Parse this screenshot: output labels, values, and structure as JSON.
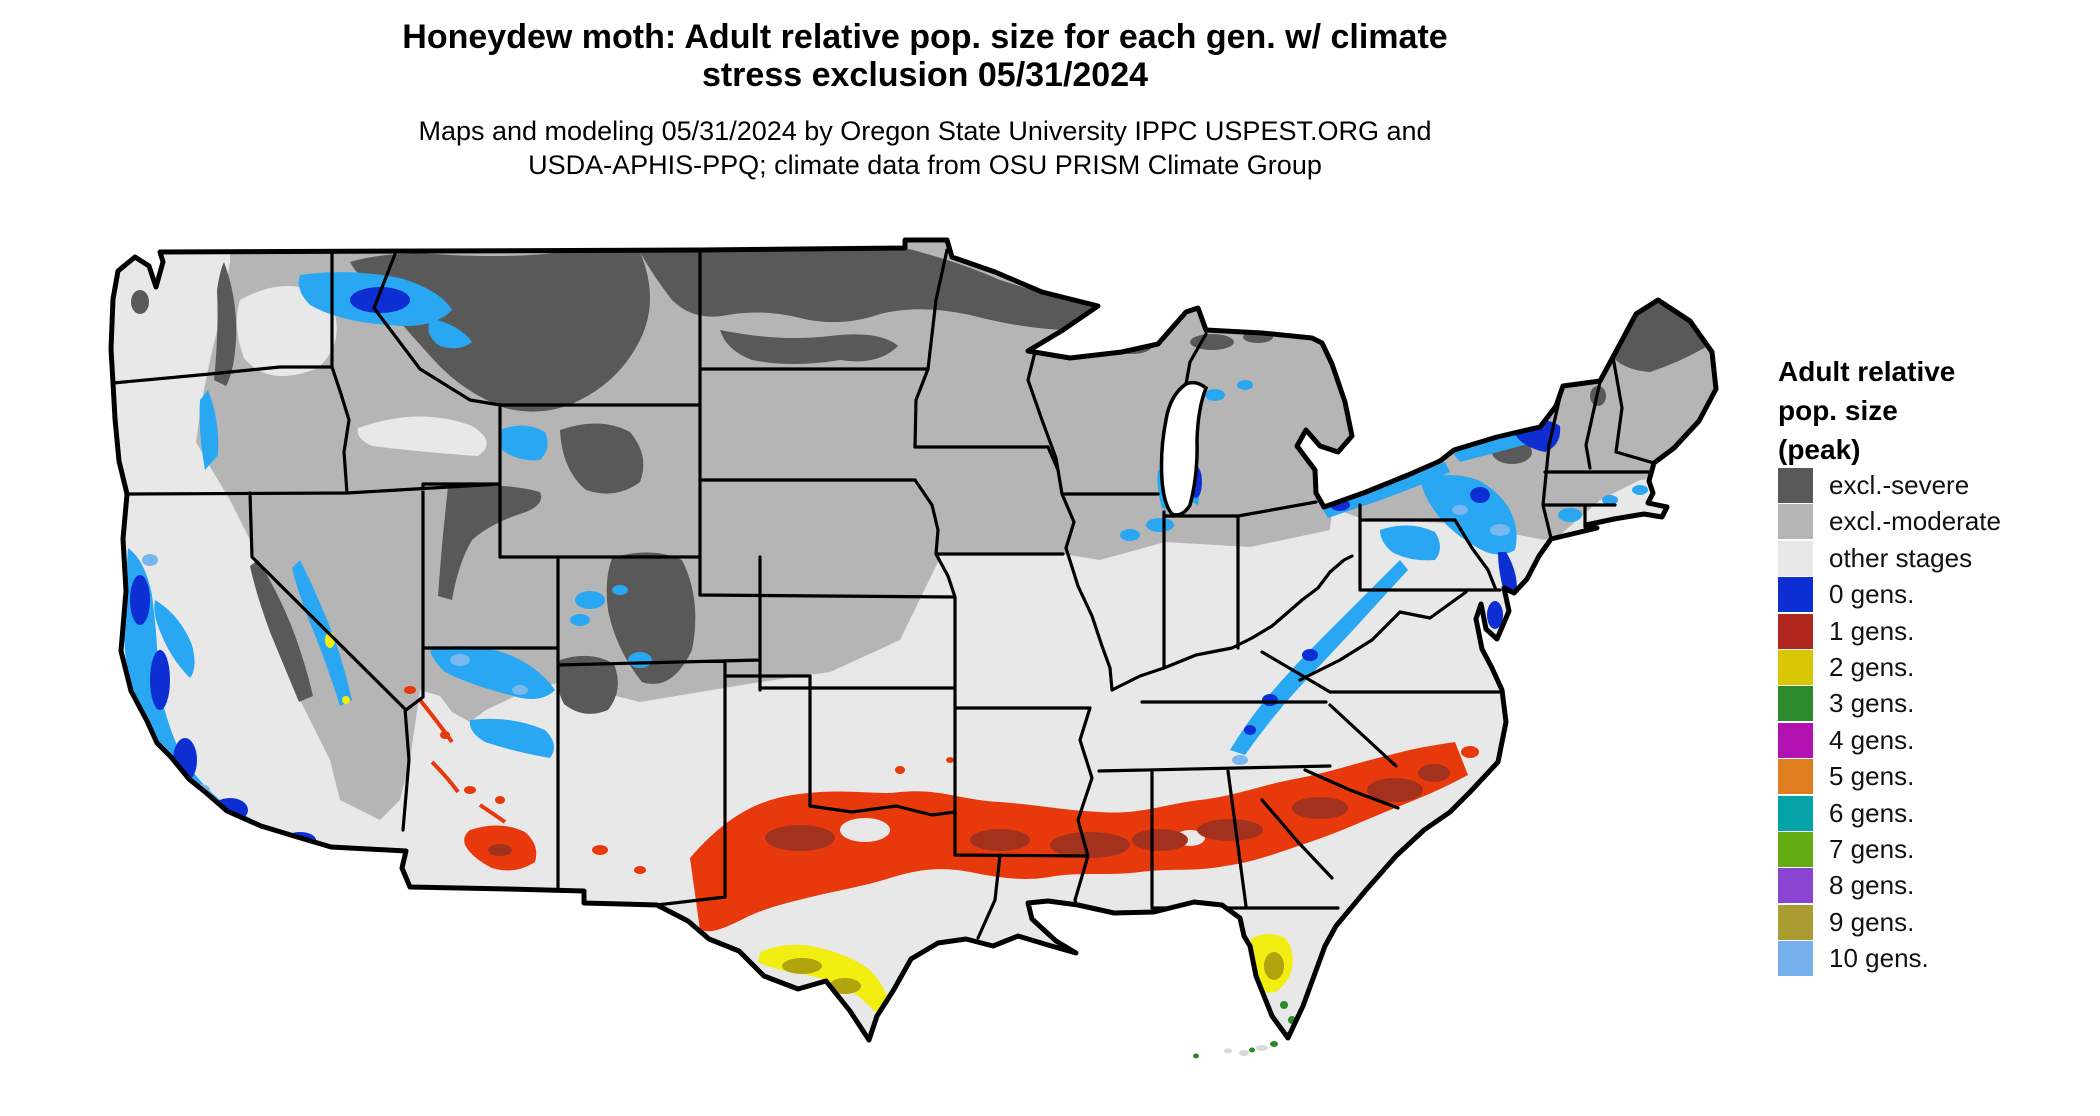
{
  "title": {
    "line1": "Honeydew moth: Adult relative pop. size for each gen. w/ climate",
    "line2": "stress exclusion 05/31/2024"
  },
  "subtitle": {
    "line1": "Maps and modeling 05/31/2024 by Oregon State University IPPC USPEST.ORG and",
    "line2": "USDA-APHIS-PPQ; climate data from OSU PRISM Climate Group"
  },
  "legend": {
    "title_lines": [
      "Adult relative",
      "pop. size",
      "(peak)"
    ],
    "items": [
      {
        "label": "excl.-severe",
        "color": "#595959"
      },
      {
        "label": "excl.-moderate",
        "color": "#b5b5b5"
      },
      {
        "label": "other stages",
        "color": "#e8e8e8"
      },
      {
        "label": "0 gens.",
        "color": "#0c2ed2"
      },
      {
        "label": "1 gens.",
        "color": "#b0261c"
      },
      {
        "label": "2 gens.",
        "color": "#d9c605"
      },
      {
        "label": "3 gens.",
        "color": "#2b8a2b"
      },
      {
        "label": "4 gens.",
        "color": "#b312b3"
      },
      {
        "label": "5 gens.",
        "color": "#e07d1e"
      },
      {
        "label": "6 gens.",
        "color": "#04a3a8"
      },
      {
        "label": "7 gens.",
        "color": "#63ad12"
      },
      {
        "label": "8 gens.",
        "color": "#8b43d1"
      },
      {
        "label": "9 gens.",
        "color": "#aa9c30"
      },
      {
        "label": "10 gens.",
        "color": "#74b0ec"
      }
    ]
  },
  "map": {
    "region": "Contiguous United States",
    "palette": {
      "base": "#e8e8e8",
      "moderate": "#b5b5b5",
      "severe": "#595959",
      "cyan": "#2aa7f2",
      "deep_blue": "#0c2ed2",
      "light_blue": "#79b8ef",
      "red": "#e8390c",
      "dark_red": "#a2321e",
      "yellow": "#f2ee11",
      "olive": "#b1a40c",
      "green": "#2a8a28",
      "outline": "#000000",
      "water": "#ffffff"
    }
  }
}
